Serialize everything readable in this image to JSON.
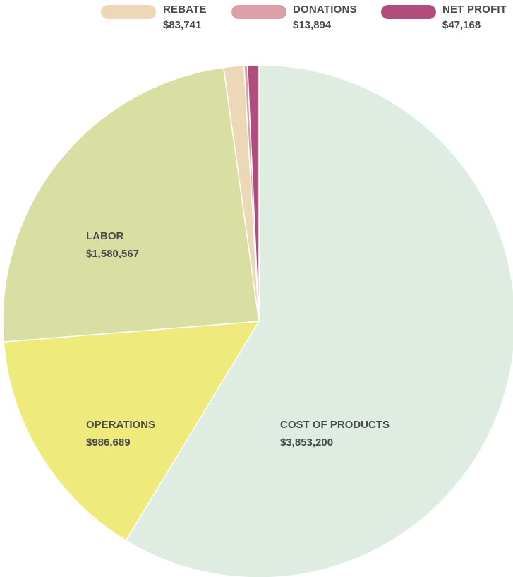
{
  "chart_data": {
    "type": "pie",
    "slices": [
      {
        "label": "COST OF PRODUCTS",
        "value": 3853200,
        "value_text": "$3,853,200",
        "color": "#deece2",
        "show_label": true
      },
      {
        "label": "OPERATIONS",
        "value": 986689,
        "value_text": "$986,689",
        "color": "#eeeb7c",
        "show_label": true
      },
      {
        "label": "LABOR",
        "value": 1580567,
        "value_text": "$1,580,567",
        "color": "#d9dea2",
        "show_label": true
      },
      {
        "label": "REBATE",
        "value": 83741,
        "value_text": "$83,741",
        "color": "#ecd7b6",
        "show_label": false
      },
      {
        "label": "DONATIONS",
        "value": 13894,
        "value_text": "$13,894",
        "color": "#dca1a8",
        "show_label": false
      },
      {
        "label": "NET PROFIT",
        "value": 47168,
        "value_text": "$47,168",
        "color": "#b04d7c",
        "show_label": false
      }
    ],
    "legend": {
      "placement": "top-right",
      "entries": [
        {
          "label": "REBATE",
          "value_text": "$83,741",
          "color": "#ecd7b6"
        },
        {
          "label": "DONATIONS",
          "value_text": "$13,894",
          "color": "#dca1a8"
        },
        {
          "label": "NET PROFIT",
          "value_text": "$47,168",
          "color": "#b04d7c"
        }
      ]
    }
  }
}
